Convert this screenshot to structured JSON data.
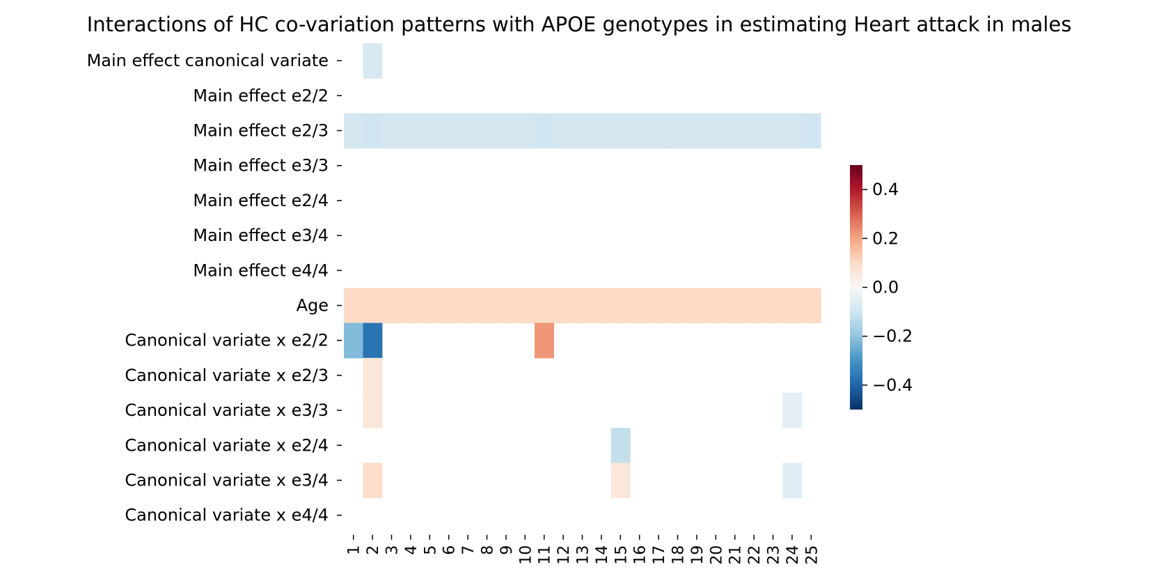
{
  "chart_data": {
    "type": "heatmap",
    "title": "Interactions of HC co-variation patterns with APOE genotypes in estimating Heart attack in males",
    "xlabel": "",
    "ylabel": "",
    "x_categories": [
      "1",
      "2",
      "3",
      "4",
      "5",
      "6",
      "7",
      "8",
      "9",
      "10",
      "11",
      "12",
      "13",
      "14",
      "15",
      "16",
      "17",
      "18",
      "19",
      "20",
      "21",
      "22",
      "23",
      "24",
      "25"
    ],
    "y_categories": [
      "Main effect canonical variate",
      "Main effect e2/2",
      "Main effect e2/3",
      "Main effect e3/3",
      "Main effect e2/4",
      "Main effect e3/4",
      "Main effect e4/4",
      "Age",
      "Canonical variate x e2/2",
      "Canonical variate x e2/3",
      "Canonical variate x e3/3",
      "Canonical variate x e2/4",
      "Canonical variate x e3/4",
      "Canonical variate x e4/4"
    ],
    "values": [
      [
        null,
        -0.08,
        null,
        null,
        null,
        null,
        null,
        null,
        null,
        null,
        null,
        null,
        null,
        null,
        null,
        null,
        null,
        null,
        null,
        null,
        null,
        null,
        null,
        null,
        null
      ],
      [
        null,
        null,
        null,
        null,
        null,
        null,
        null,
        null,
        null,
        null,
        null,
        null,
        null,
        null,
        null,
        null,
        null,
        null,
        null,
        null,
        null,
        null,
        null,
        null,
        null
      ],
      [
        -0.09,
        -0.1,
        -0.09,
        -0.09,
        -0.09,
        -0.09,
        -0.09,
        -0.09,
        -0.09,
        -0.09,
        -0.1,
        -0.09,
        -0.09,
        -0.09,
        -0.09,
        -0.09,
        -0.09,
        -0.09,
        -0.09,
        -0.09,
        -0.09,
        -0.09,
        -0.09,
        -0.09,
        -0.1
      ],
      [
        null,
        null,
        null,
        null,
        null,
        null,
        null,
        null,
        null,
        null,
        null,
        null,
        null,
        null,
        null,
        null,
        null,
        null,
        null,
        null,
        null,
        null,
        null,
        null,
        null
      ],
      [
        null,
        null,
        null,
        null,
        null,
        null,
        null,
        null,
        null,
        null,
        null,
        null,
        null,
        null,
        null,
        null,
        null,
        null,
        null,
        null,
        null,
        null,
        null,
        null,
        null
      ],
      [
        null,
        null,
        null,
        null,
        null,
        null,
        null,
        null,
        null,
        null,
        null,
        null,
        null,
        null,
        null,
        null,
        null,
        null,
        null,
        null,
        null,
        null,
        null,
        null,
        null
      ],
      [
        null,
        null,
        null,
        null,
        null,
        null,
        null,
        null,
        null,
        null,
        null,
        null,
        null,
        null,
        null,
        null,
        null,
        null,
        null,
        null,
        null,
        null,
        null,
        null,
        null
      ],
      [
        0.1,
        0.1,
        0.1,
        0.1,
        0.1,
        0.1,
        0.1,
        0.1,
        0.1,
        0.1,
        0.1,
        0.1,
        0.1,
        0.1,
        0.1,
        0.1,
        0.1,
        0.1,
        0.1,
        0.1,
        0.1,
        0.1,
        0.1,
        0.1,
        0.1
      ],
      [
        -0.22,
        -0.37,
        null,
        null,
        null,
        null,
        null,
        null,
        null,
        null,
        0.22,
        null,
        null,
        null,
        null,
        null,
        null,
        null,
        null,
        null,
        null,
        null,
        null,
        null,
        null
      ],
      [
        null,
        0.06,
        null,
        null,
        null,
        null,
        null,
        null,
        null,
        null,
        null,
        null,
        null,
        null,
        null,
        null,
        null,
        null,
        null,
        null,
        null,
        null,
        null,
        null,
        null
      ],
      [
        null,
        0.06,
        null,
        null,
        null,
        null,
        null,
        null,
        null,
        null,
        null,
        null,
        null,
        null,
        null,
        null,
        null,
        null,
        null,
        null,
        null,
        null,
        null,
        -0.05,
        null
      ],
      [
        null,
        null,
        null,
        null,
        null,
        null,
        null,
        null,
        null,
        null,
        null,
        null,
        null,
        null,
        -0.12,
        null,
        null,
        null,
        null,
        null,
        null,
        null,
        null,
        null,
        null
      ],
      [
        null,
        0.09,
        null,
        null,
        null,
        null,
        null,
        null,
        null,
        null,
        null,
        null,
        null,
        null,
        0.06,
        null,
        null,
        null,
        null,
        null,
        null,
        null,
        null,
        -0.06,
        null
      ],
      [
        null,
        null,
        null,
        null,
        null,
        null,
        null,
        null,
        null,
        null,
        null,
        null,
        null,
        null,
        null,
        null,
        null,
        null,
        null,
        null,
        null,
        null,
        null,
        null,
        null
      ]
    ],
    "colormap": "RdBu_r",
    "vmin": -0.5,
    "vmax": 0.5,
    "colorbar_ticks": [
      0.4,
      0.2,
      0.0,
      -0.2,
      -0.4
    ],
    "colorbar_tick_labels": [
      "0.4",
      "0.2",
      "0.0",
      "−0.2",
      "−0.4"
    ],
    "grid": false,
    "legend_placement": "right"
  }
}
